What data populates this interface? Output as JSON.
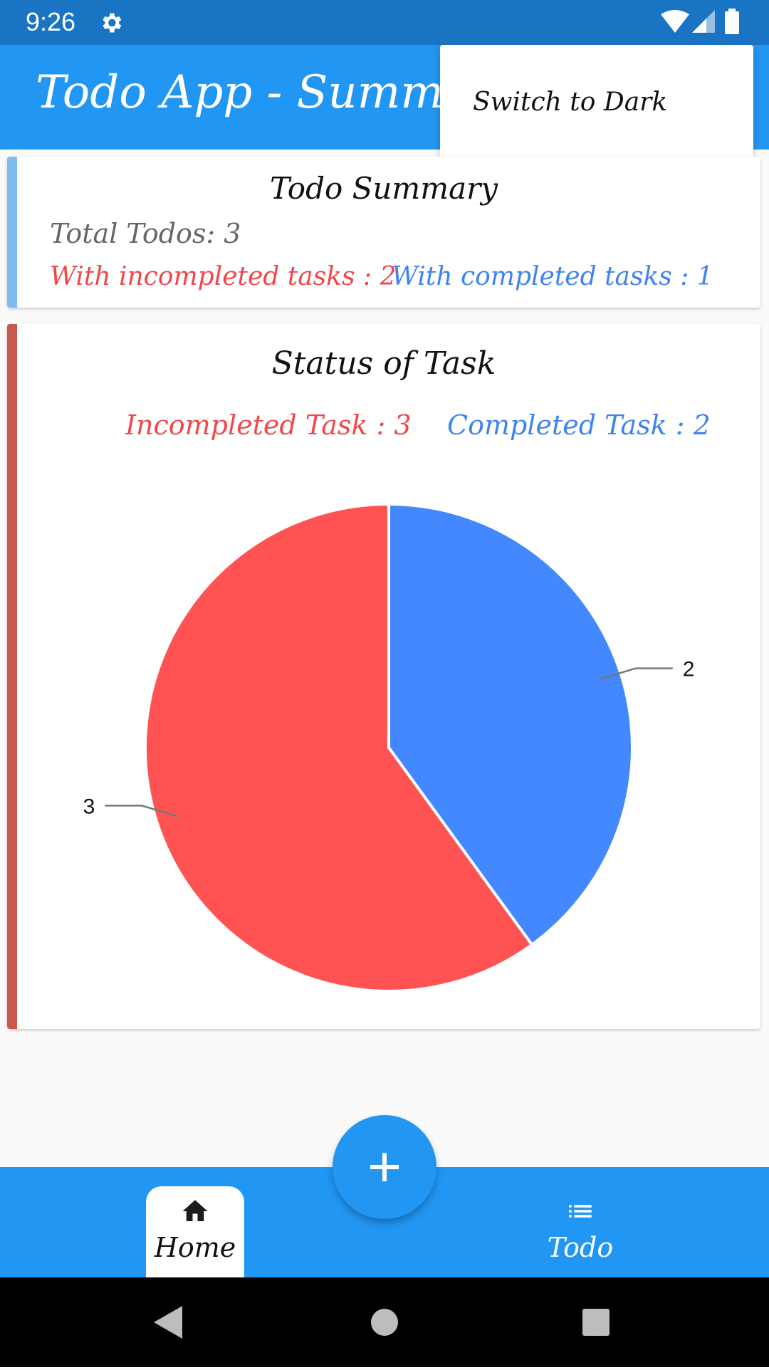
{
  "status_bar": {
    "time": "9:26",
    "icons": [
      "gear-icon",
      "wifi-icon",
      "signal-icon",
      "battery-icon"
    ]
  },
  "app_bar": {
    "title": "Todo App - Summary"
  },
  "popup_menu": {
    "items": [
      {
        "label": "Switch to Dark"
      }
    ]
  },
  "summary": {
    "title": "Todo Summary",
    "total": "Total Todos: 3",
    "incompleted": "With incompleted tasks : 2",
    "completed": "With completed tasks : 1"
  },
  "status_card": {
    "title": "Status of Task",
    "legend_incompleted": "Incompleted Task : 3",
    "legend_completed": "Completed Task : 2"
  },
  "chart_data": {
    "type": "pie",
    "categories": [
      "Completed Task",
      "Incompleted Task"
    ],
    "values": [
      2,
      3
    ],
    "labels": [
      "2",
      "3"
    ],
    "colors": [
      "#4488ff",
      "#ff5252"
    ]
  },
  "bottom_nav": {
    "items": [
      {
        "label": "Home",
        "icon": "home-icon",
        "active": true
      },
      {
        "label": "Todo",
        "icon": "list-icon",
        "active": false
      }
    ]
  },
  "fab": {
    "icon": "plus-icon"
  },
  "colors": {
    "primary": "#2196f3",
    "status_bar": "#1a74c4",
    "incomplete": "#f2474a",
    "completed": "#3f83f0",
    "summary_stripe": "#7fbaf3",
    "chart_stripe": "#c9584f"
  }
}
